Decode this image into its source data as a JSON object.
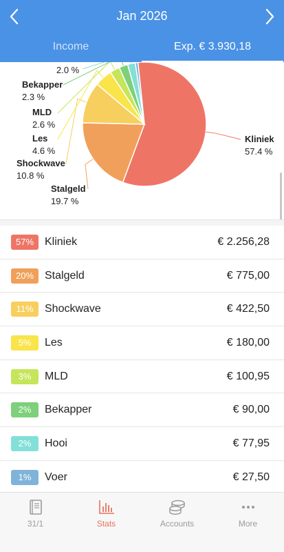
{
  "header": {
    "title": "Jan 2026",
    "tabs": [
      {
        "label": "Income",
        "active": false
      },
      {
        "label": "Exp. € 3.930,18",
        "active": true
      }
    ]
  },
  "chart_data": {
    "type": "pie",
    "total_label": "Exp. € 3.930,18",
    "slices": [
      {
        "label": "Kliniek",
        "pct_label": "57.4 %",
        "value": 57.4,
        "color": "#ee7566"
      },
      {
        "label": "Stalgeld",
        "pct_label": "19.7 %",
        "value": 19.7,
        "color": "#f0a05a"
      },
      {
        "label": "Shockwave",
        "pct_label": "10.8 %",
        "value": 10.8,
        "color": "#f7cf5e"
      },
      {
        "label": "Les",
        "pct_label": "4.6 %",
        "value": 4.6,
        "color": "#f9e44a"
      },
      {
        "label": "MLD",
        "pct_label": "2.6 %",
        "value": 2.6,
        "color": "#c6e55a"
      },
      {
        "label": "Bekapper",
        "pct_label": "2.3 %",
        "value": 2.3,
        "color": "#7ed07a"
      },
      {
        "label": "",
        "pct_label": "2.0 %",
        "value": 2.0,
        "color": "#82e0d8"
      },
      {
        "label": "",
        "pct_label": "",
        "value": 0.7,
        "color": "#7fb3d9"
      }
    ]
  },
  "list": [
    {
      "badge": "57%",
      "category": "Kliniek",
      "amount": "€ 2.256,28",
      "color": "#ee7566"
    },
    {
      "badge": "20%",
      "category": "Stalgeld",
      "amount": "€ 775,00",
      "color": "#f0a05a"
    },
    {
      "badge": "11%",
      "category": "Shockwave",
      "amount": "€ 422,50",
      "color": "#f7cf5e"
    },
    {
      "badge": "5%",
      "category": "Les",
      "amount": "€ 180,00",
      "color": "#f9e44a"
    },
    {
      "badge": "3%",
      "category": "MLD",
      "amount": "€ 100,95",
      "color": "#c6e55a"
    },
    {
      "badge": "2%",
      "category": "Bekapper",
      "amount": "€ 90,00",
      "color": "#7ed07a"
    },
    {
      "badge": "2%",
      "category": "Hooi",
      "amount": "€ 77,95",
      "color": "#82e0d8"
    },
    {
      "badge": "1%",
      "category": "Voer",
      "amount": "€ 27,50",
      "color": "#7fb3d9"
    }
  ],
  "tabbar": [
    {
      "label": "31/1",
      "icon": "book-icon",
      "active": false
    },
    {
      "label": "Stats",
      "icon": "bar-chart-icon",
      "active": true
    },
    {
      "label": "Accounts",
      "icon": "coins-icon",
      "active": false
    },
    {
      "label": "More",
      "icon": "more-dots-icon",
      "active": false
    }
  ],
  "colors": {
    "header_blue": "#4a92e6",
    "active_tab_label": "#e8705f"
  }
}
